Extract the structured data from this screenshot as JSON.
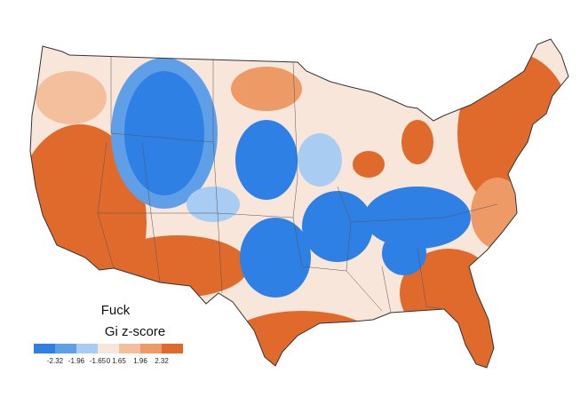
{
  "map": {
    "title": "Fuck",
    "legend": {
      "title": "Gi z-score",
      "colors": [
        "#2f80e4",
        "#5f9fe8",
        "#a8ccf2",
        "#f9e6da",
        "#f4bf9c",
        "#ee9a66",
        "#e06a2c"
      ],
      "ticks": [
        -2.32,
        -1.96,
        -1.65,
        0,
        1.65,
        1.96,
        2.32
      ]
    }
  }
}
